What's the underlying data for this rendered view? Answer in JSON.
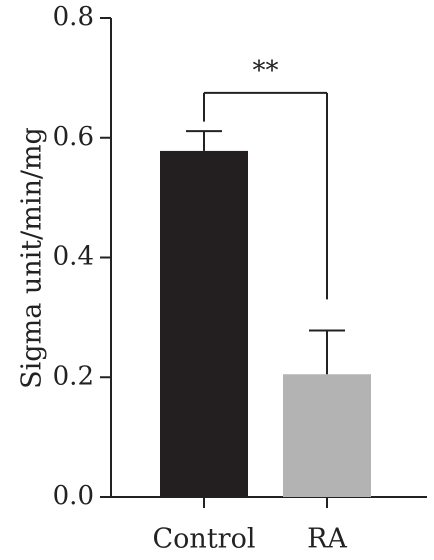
{
  "chart_data": {
    "type": "bar",
    "title": "",
    "xlabel": "",
    "ylabel": "Sigma unit/min/mg",
    "categories": [
      "Control",
      "RA"
    ],
    "values": [
      0.578,
      0.205
    ],
    "errors": [
      0.033,
      0.073
    ],
    "bar_colors": [
      "#231f20",
      "#b3b3b3"
    ],
    "ylim": [
      0,
      0.8
    ],
    "yticks": [
      0.0,
      0.2,
      0.4,
      0.6,
      0.8
    ],
    "ytick_labels": [
      "0.0",
      "0.2",
      "0.4",
      "0.6",
      "0.8"
    ],
    "grid": false,
    "significance": {
      "between": [
        "Control",
        "RA"
      ],
      "label": "**",
      "bracket_y": 0.675,
      "left_drop_to": 0.627,
      "right_drop_to": 0.33
    }
  }
}
